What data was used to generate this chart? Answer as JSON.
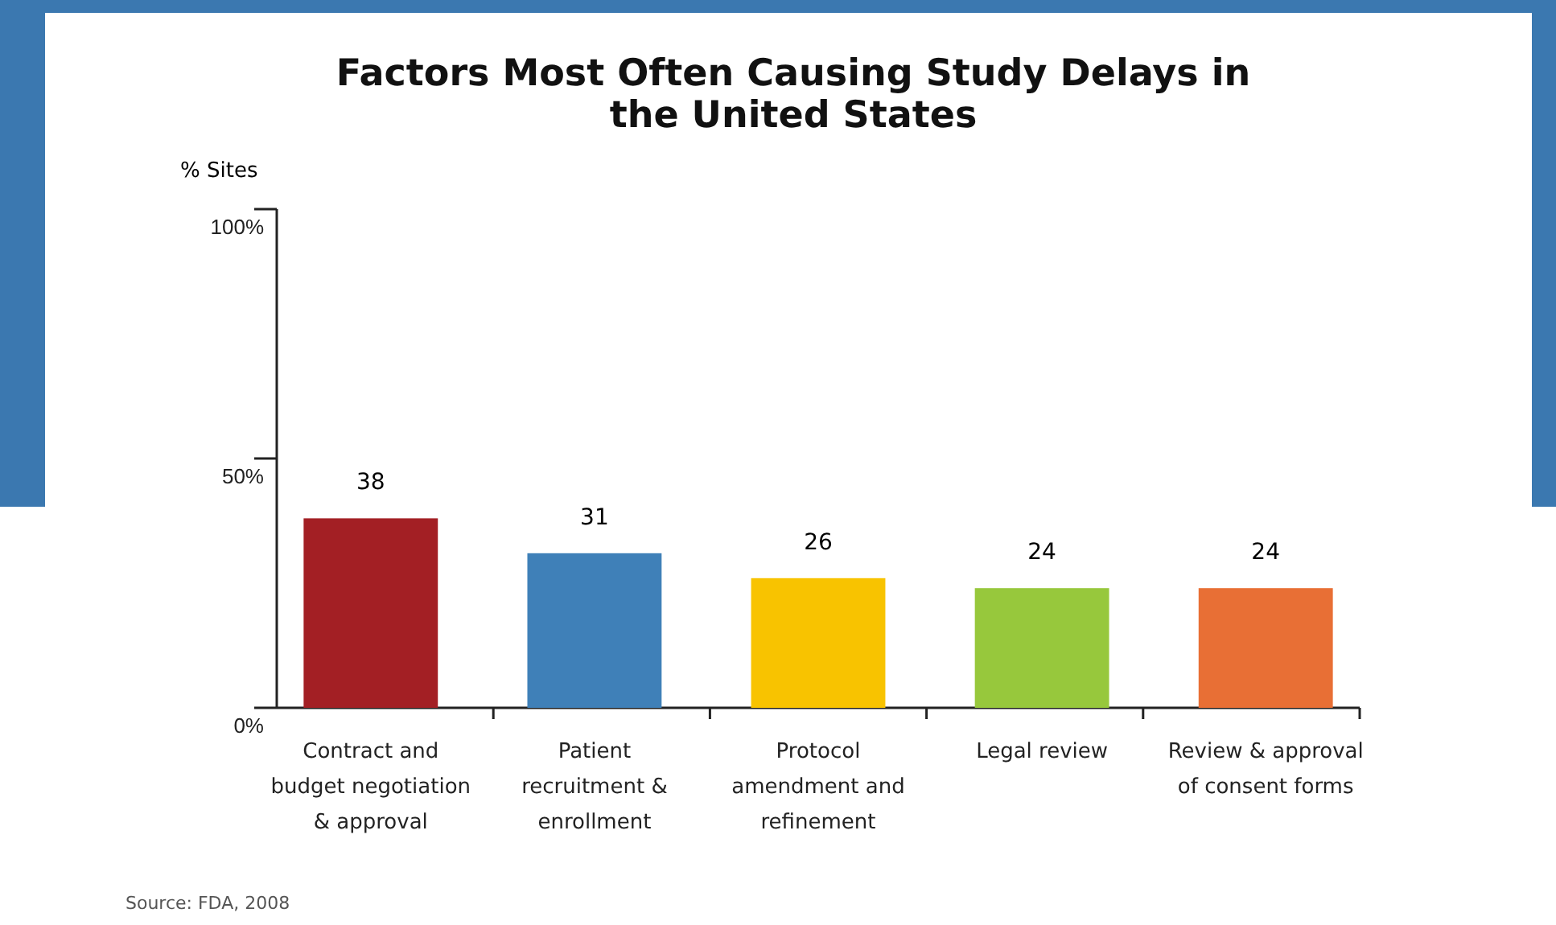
{
  "chart_data": {
    "type": "bar",
    "title": "Factors Most Often Causing Study Delays in the United States",
    "ylabel": "% Sites",
    "categories": [
      "Contract and budget negotiation & approval",
      "Patient recruitment & enrollment",
      "Protocol amendment and refinement",
      "Legal review",
      "Review & approval of consent forms"
    ],
    "values": [
      38,
      31,
      26,
      24,
      24
    ],
    "colors": [
      "#a31f24",
      "#3f80b8",
      "#f8c300",
      "#97c83c",
      "#e86f35"
    ],
    "ylim": [
      0,
      100
    ],
    "yticks": [
      {
        "value": 0,
        "label": "0%"
      },
      {
        "value": 50,
        "label": "50%"
      },
      {
        "value": 100,
        "label": "100%"
      }
    ],
    "data_labels": true,
    "annotations": [
      "Source: FDA, 2008"
    ]
  }
}
